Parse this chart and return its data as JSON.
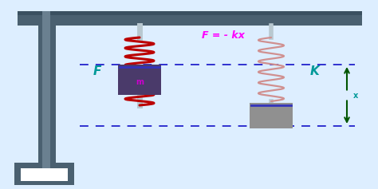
{
  "bg_color": "#ddeeff",
  "stand_color": "#4a6070",
  "stand_color2": "#3a5060",
  "rod_color": "#b8c8d0",
  "spring1_color": "#bb0000",
  "spring2_color": "#d09090",
  "text_F_eq": "F = - kx",
  "text_F": "F",
  "text_K": "K",
  "text_m": "m",
  "text_x": "x",
  "color_F_eq": "#ff00ff",
  "color_FK": "#009999",
  "color_dash": "#2222cc",
  "color_arrow": "#005500",
  "color_mass1": "#4a3a6a",
  "color_mass2": "#909090",
  "color_m_label": "#cc00cc",
  "color_mass_line": "#3333bb"
}
